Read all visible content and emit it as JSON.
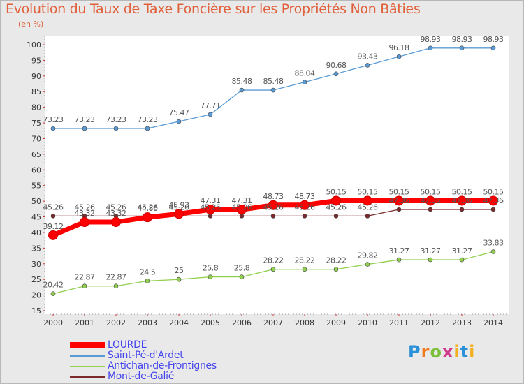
{
  "chart_data": {
    "type": "line",
    "title": "Evolution du Taux de Taxe Foncière sur les Propriétés Non Bâties",
    "ylabel": "(en %)",
    "xlabel": "",
    "x": [
      2000,
      2001,
      2002,
      2003,
      2004,
      2005,
      2006,
      2007,
      2008,
      2009,
      2010,
      2011,
      2012,
      2013,
      2014
    ],
    "ylim": [
      15,
      100
    ],
    "yticks": [
      15,
      20,
      25,
      30,
      35,
      40,
      45,
      50,
      55,
      60,
      65,
      70,
      75,
      80,
      85,
      90,
      95,
      100
    ],
    "grid": false,
    "legend_position": "bottom-left",
    "series": [
      {
        "name": "LOURDE",
        "color": "#ff0000",
        "highlight": true,
        "values": [
          39.12,
          43.32,
          43.32,
          44.86,
          45.93,
          47.31,
          47.31,
          48.73,
          48.73,
          50.15,
          50.15,
          50.15,
          50.15,
          50.15,
          50.15
        ]
      },
      {
        "name": "Saint-Pé-d'Ardet",
        "color": "#5b9bd5",
        "values": [
          73.23,
          73.23,
          73.23,
          73.23,
          75.47,
          77.71,
          85.48,
          85.48,
          88.04,
          90.68,
          93.43,
          96.18,
          98.93,
          98.93,
          98.93
        ]
      },
      {
        "name": "Antichan-de-Frontignes",
        "color": "#92d050",
        "values": [
          20.42,
          22.87,
          22.87,
          24.5,
          25,
          25.8,
          25.8,
          28.22,
          28.22,
          28.22,
          29.82,
          31.27,
          31.27,
          31.27,
          33.83
        ]
      },
      {
        "name": "Mont-de-Galié",
        "color": "#7a2a2a",
        "values": [
          45.26,
          45.26,
          45.26,
          45.26,
          45.26,
          45.26,
          45.26,
          45.26,
          45.26,
          45.26,
          45.26,
          47.36,
          47.36,
          47.36,
          47.36
        ]
      }
    ]
  },
  "logo": {
    "p": "P",
    "r": "r",
    "o": "o",
    "x": "x",
    "i": "i",
    "t": "t",
    "i2": "i"
  }
}
